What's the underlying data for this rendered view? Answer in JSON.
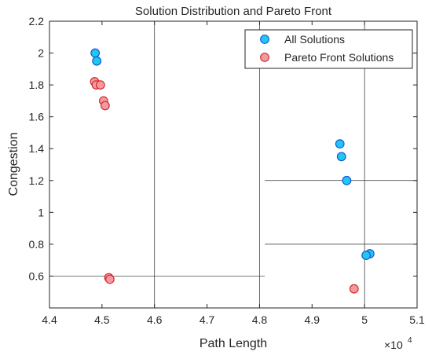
{
  "chart_data": {
    "type": "scatter",
    "title": "Solution Distribution and Pareto Front",
    "xlabel": "Path Length",
    "ylabel": "Congestion",
    "x_exponent_label": "×10",
    "x_exponent_power": "4",
    "xlim": [
      4.4,
      5.1
    ],
    "ylim": [
      0.4,
      2.2
    ],
    "x_ticks": [
      4.4,
      4.5,
      4.6,
      4.7,
      4.8,
      4.9,
      5.0,
      5.1
    ],
    "x_tick_labels": [
      "4.4",
      "4.5",
      "4.6",
      "4.7",
      "4.8",
      "4.9",
      "5",
      "5.1"
    ],
    "y_ticks": [
      0.6,
      0.8,
      1.0,
      1.2,
      1.4,
      1.6,
      1.8,
      2.0,
      2.2
    ],
    "y_tick_labels": [
      "0.6",
      "0.8",
      "1",
      "1.2",
      "1.4",
      "1.6",
      "1.8",
      "2",
      "2.2"
    ],
    "grid": "partial",
    "legend_position": "top-right",
    "series": [
      {
        "name": "All Solutions",
        "color": "#1fc8f0",
        "edge": "#1a56d6",
        "points": [
          {
            "x": 4.487,
            "y": 2.0
          },
          {
            "x": 4.49,
            "y": 1.95
          },
          {
            "x": 4.953,
            "y": 1.43
          },
          {
            "x": 4.956,
            "y": 1.35
          },
          {
            "x": 4.966,
            "y": 1.2
          },
          {
            "x": 5.01,
            "y": 0.74
          },
          {
            "x": 5.003,
            "y": 0.73
          }
        ]
      },
      {
        "name": "Pareto Front Solutions",
        "color": "#f29aa0",
        "edge": "#d42a2a",
        "points": [
          {
            "x": 4.486,
            "y": 1.82
          },
          {
            "x": 4.489,
            "y": 1.8
          },
          {
            "x": 4.497,
            "y": 1.8
          },
          {
            "x": 4.503,
            "y": 1.7
          },
          {
            "x": 4.506,
            "y": 1.67
          },
          {
            "x": 4.513,
            "y": 0.59
          },
          {
            "x": 4.515,
            "y": 0.58
          },
          {
            "x": 4.98,
            "y": 0.52
          }
        ]
      }
    ],
    "gridlines": {
      "vertical_x": [
        4.6,
        4.8,
        5.0
      ],
      "horizontal_segments": [
        {
          "y": 0.6,
          "x_from": 4.4,
          "x_to": 4.81
        },
        {
          "y": 0.8,
          "x_from": 4.81,
          "x_to": 5.1
        },
        {
          "y": 1.2,
          "x_from": 4.81,
          "x_to": 5.1
        },
        {
          "y": 2.0,
          "x_from": 5.0,
          "x_to": 5.1
        }
      ]
    }
  }
}
